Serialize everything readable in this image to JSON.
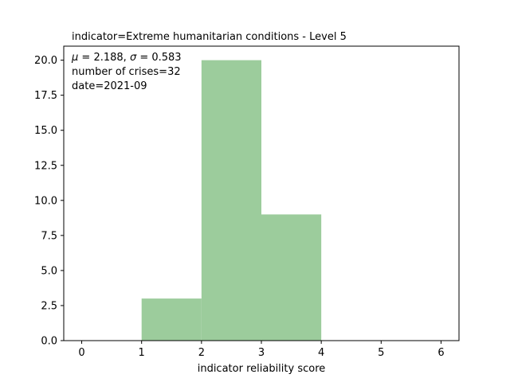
{
  "chart_data": {
    "type": "bar",
    "title": "indicator=Extreme humanitarian conditions - Level 5",
    "xlabel": "indicator reliability score",
    "ylabel": "",
    "bins": [
      {
        "x0": 1,
        "x1": 2,
        "count": 3
      },
      {
        "x0": 2,
        "x1": 3,
        "count": 20
      },
      {
        "x0": 3,
        "x1": 4,
        "count": 9
      }
    ],
    "xlim": [
      -0.3,
      6.3
    ],
    "ylim": [
      0,
      21
    ],
    "xticks": [
      0,
      1,
      2,
      3,
      4,
      5,
      6
    ],
    "yticks": [
      0.0,
      2.5,
      5.0,
      7.5,
      10.0,
      12.5,
      15.0,
      17.5,
      20.0
    ],
    "ytick_labels": [
      "0.0",
      "2.5",
      "5.0",
      "7.5",
      "10.0",
      "12.5",
      "15.0",
      "17.5",
      "20.0"
    ],
    "annotations": {
      "stats_mu": "2.188",
      "stats_sigma": "0.583",
      "crises": "number of crises=32",
      "date": "date=2021-09"
    },
    "bar_color": "#9ccc9c",
    "grid": false
  }
}
